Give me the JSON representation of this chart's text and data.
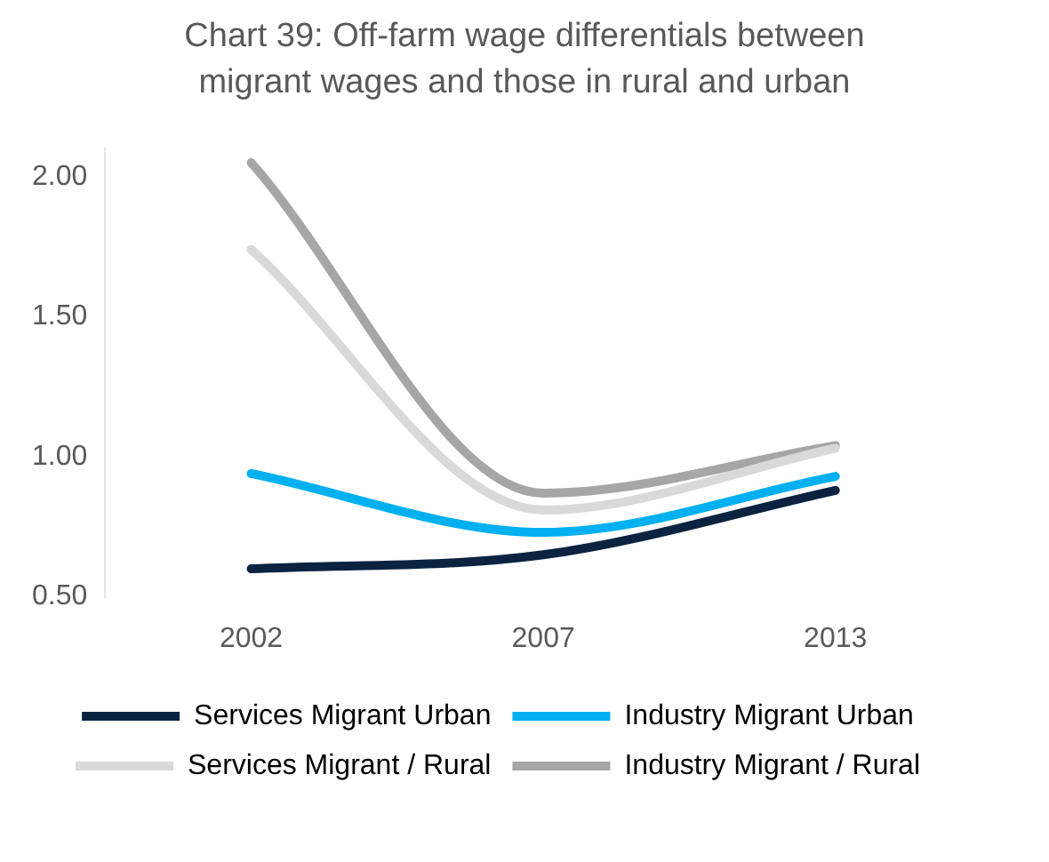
{
  "chart_data": {
    "type": "line",
    "title": "Chart 39: Off-farm wage differentials between migrant wages and those in rural and urban",
    "categories": [
      "2002",
      "2007",
      "2013"
    ],
    "series": [
      {
        "name": "Services Migrant Urban",
        "color": "#0b2341",
        "values": [
          0.6,
          0.65,
          0.88
        ]
      },
      {
        "name": "Industry Migrant Urban",
        "color": "#00b0f0",
        "values": [
          0.94,
          0.73,
          0.93
        ]
      },
      {
        "name": "Services Migrant / Rural",
        "color": "#d9d9d9",
        "values": [
          1.74,
          0.81,
          1.03
        ]
      },
      {
        "name": "Industry Migrant / Rural",
        "color": "#a6a6a6",
        "values": [
          2.05,
          0.87,
          1.04
        ]
      }
    ],
    "ylim": [
      0.5,
      2.1
    ],
    "yticks": [
      {
        "value": 0.5,
        "label": "0.50"
      },
      {
        "value": 1,
        "label": "1.00"
      },
      {
        "value": 1.5,
        "label": "1.50"
      },
      {
        "value": 2,
        "label": "2.00"
      }
    ],
    "grid": false,
    "legend": "bottom",
    "marker": "none",
    "line_style": "solid"
  }
}
